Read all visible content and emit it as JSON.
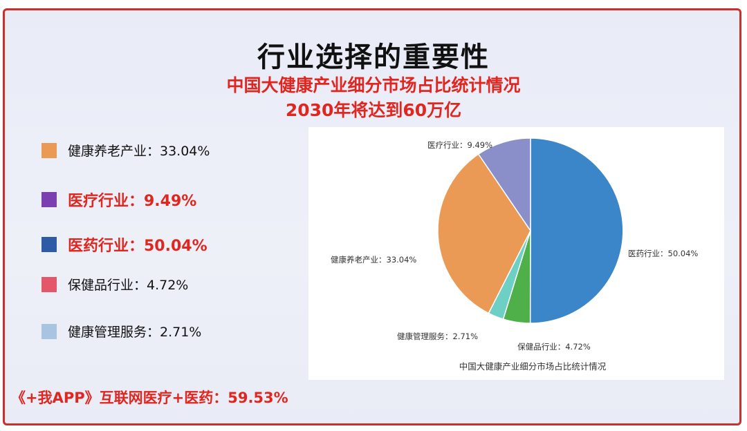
{
  "header": {
    "title": "行业选择的重要性",
    "subtitle": "中国大健康产业细分市场占比统计情况",
    "subtitle2": "2030年将达到60万亿"
  },
  "legend": {
    "items": [
      {
        "label": "健康养老产业：33.04%",
        "color": "#eb9a56",
        "highlight": false
      },
      {
        "label": "医疗行业：9.49%",
        "color": "#7b3fb0",
        "highlight": true
      },
      {
        "label": "医药行业：50.04%",
        "color": "#2f5aa6",
        "highlight": true
      },
      {
        "label": "保健品行业：4.72%",
        "color": "#e4576a",
        "highlight": false
      },
      {
        "label": "健康管理服务：2.71%",
        "color": "#a9c4e3",
        "highlight": false
      }
    ]
  },
  "footer": {
    "text": "《+我APP》互联网医疗+医药：59.53%"
  },
  "chart_data": {
    "type": "pie",
    "title": "中国大健康产业细分市场占比统计情况",
    "start_angle_deg": 0,
    "direction": "clockwise",
    "slices": [
      {
        "name": "医药行业",
        "value": 50.04,
        "label": "医药行业：50.04%",
        "color": "#3b86c9"
      },
      {
        "name": "保健品行业",
        "value": 4.72,
        "label": "保健品行业：4.72%",
        "color": "#4fb04a"
      },
      {
        "name": "健康管理服务",
        "value": 2.71,
        "label": "健康管理服务：2.71%",
        "color": "#6ed0c4"
      },
      {
        "name": "健康养老产业",
        "value": 33.04,
        "label": "健康养老产业：33.04%",
        "color": "#eb9a56"
      },
      {
        "name": "医疗行业",
        "value": 9.49,
        "label": "医疗行业：9.49%",
        "color": "#8b8fc9"
      }
    ]
  }
}
